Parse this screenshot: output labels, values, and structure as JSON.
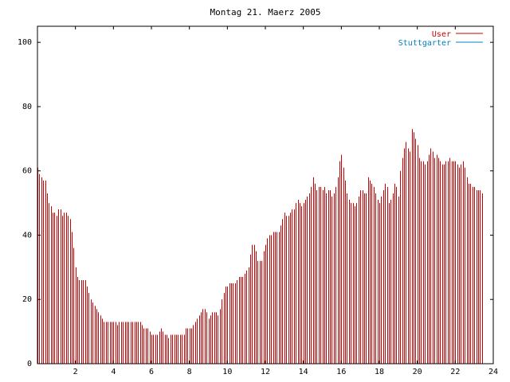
{
  "chart_data": {
    "type": "bar",
    "title": "Montag 21. Maerz 2005",
    "xlabel": "",
    "ylabel": "",
    "xlim": [
      0,
      24
    ],
    "ylim": [
      0,
      105
    ],
    "xticks": [
      2,
      4,
      6,
      8,
      10,
      12,
      14,
      16,
      18,
      20,
      22,
      24
    ],
    "yticks": [
      0,
      20,
      40,
      60,
      80,
      100
    ],
    "legend_position": "top-right",
    "series": [
      {
        "name": "User",
        "color": "#cc0000",
        "step_hours": 0.1,
        "values": [
          61,
          59,
          58,
          57,
          57,
          53,
          50,
          49,
          47,
          47,
          46,
          48,
          48,
          46,
          47,
          47,
          46,
          45,
          41,
          36,
          30,
          27,
          26,
          26,
          26,
          26,
          24,
          22,
          20,
          19,
          18,
          17,
          16,
          15,
          14,
          13,
          13,
          13,
          13,
          13,
          13,
          13,
          12,
          13,
          13,
          13,
          13,
          13,
          13,
          13,
          13,
          13,
          13,
          13,
          13,
          12,
          11,
          11,
          11,
          10,
          9,
          9,
          9,
          9,
          10,
          11,
          10,
          9,
          9,
          8,
          9,
          9,
          9,
          9,
          9,
          9,
          9,
          9,
          11,
          11,
          11,
          11,
          12,
          13,
          14,
          15,
          16,
          17,
          17,
          16,
          14,
          15,
          16,
          16,
          16,
          15,
          17,
          20,
          22,
          24,
          24,
          25,
          25,
          25,
          25,
          26,
          27,
          27,
          27,
          28,
          29,
          30,
          34,
          37,
          37,
          35,
          32,
          32,
          32,
          35,
          37,
          39,
          40,
          40,
          41,
          41,
          41,
          41,
          43,
          45,
          47,
          46,
          46,
          47,
          48,
          48,
          50,
          51,
          50,
          49,
          50,
          51,
          52,
          53,
          55,
          58,
          56,
          54,
          55,
          55,
          54,
          55,
          53,
          54,
          54,
          52,
          53,
          55,
          58,
          63,
          65,
          61,
          57,
          53,
          51,
          50,
          50,
          49,
          50,
          52,
          54,
          54,
          53,
          53,
          58,
          57,
          56,
          55,
          53,
          51,
          50,
          52,
          54,
          56,
          55,
          50,
          51,
          53,
          56,
          55,
          52,
          60,
          64,
          67,
          69,
          67,
          66,
          73,
          72,
          70,
          68,
          64,
          63,
          63,
          62,
          63,
          65,
          67,
          66,
          64,
          65,
          64,
          63,
          62,
          62,
          63,
          63,
          64,
          63,
          63,
          63,
          62,
          61,
          62,
          63,
          61,
          58,
          56,
          56,
          55,
          55,
          54,
          54,
          54,
          53
        ]
      },
      {
        "name": "Stuttgarter",
        "color": "#0080c0",
        "values": []
      }
    ]
  }
}
